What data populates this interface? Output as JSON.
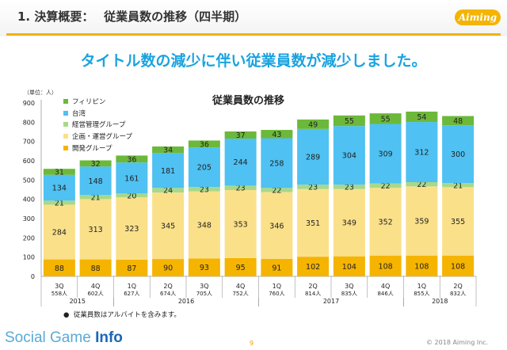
{
  "header": {
    "section_title": "1. 決算概要：　 従業員数の推移（四半期）",
    "logo_text": "Aiming"
  },
  "headline": "タイトル数の減少に伴い従業員数が減少しました。",
  "footnote": "従業員数はアルバイトを含みます。",
  "footer": {
    "brand_light": "Social Game",
    "brand_bold": "Info",
    "page_number": "9",
    "copyright": "© 2018 Aiming Inc."
  },
  "colors": {
    "フィリピン": "#6cb83a",
    "台湾": "#4fc1f2",
    "経営管理グループ": "#a8d88a",
    "企画・運営グループ": "#fbe08a",
    "開発グループ": "#f5b400"
  },
  "chart_data": {
    "type": "bar",
    "stacked": true,
    "title": "従業員数の推移",
    "unit_label": "（単位：人）",
    "ylim": [
      0,
      900
    ],
    "yticks": [
      0,
      100,
      200,
      300,
      400,
      500,
      600,
      700,
      800,
      900
    ],
    "categories": [
      "3Q",
      "4Q",
      "1Q",
      "2Q",
      "3Q",
      "4Q",
      "1Q",
      "2Q",
      "3Q",
      "4Q",
      "1Q",
      "2Q"
    ],
    "totals": [
      "558人",
      "602人",
      "627人",
      "674人",
      "705人",
      "752人",
      "760人",
      "814人",
      "835人",
      "846人",
      "855人",
      "832人"
    ],
    "years": [
      {
        "label": "2015",
        "span": [
          0,
          1
        ]
      },
      {
        "label": "2016",
        "span": [
          2,
          5
        ]
      },
      {
        "label": "2017",
        "span": [
          6,
          9
        ]
      },
      {
        "label": "2018",
        "span": [
          10,
          11
        ]
      }
    ],
    "legend_position": "top-left",
    "series": [
      {
        "name": "開発グループ",
        "values": [
          88,
          88,
          87,
          90,
          93,
          95,
          91,
          102,
          104,
          108,
          108,
          108
        ]
      },
      {
        "name": "企画・運営グループ",
        "values": [
          284,
          313,
          323,
          345,
          348,
          353,
          346,
          351,
          349,
          352,
          359,
          355
        ]
      },
      {
        "name": "経営管理グループ",
        "values": [
          21,
          21,
          20,
          24,
          23,
          23,
          22,
          23,
          23,
          22,
          22,
          21
        ]
      },
      {
        "name": "台湾",
        "values": [
          134,
          148,
          161,
          181,
          205,
          244,
          258,
          289,
          304,
          309,
          312,
          300
        ]
      },
      {
        "name": "フィリピン",
        "values": [
          31,
          32,
          36,
          34,
          36,
          37,
          43,
          49,
          55,
          55,
          54,
          48
        ]
      }
    ]
  }
}
